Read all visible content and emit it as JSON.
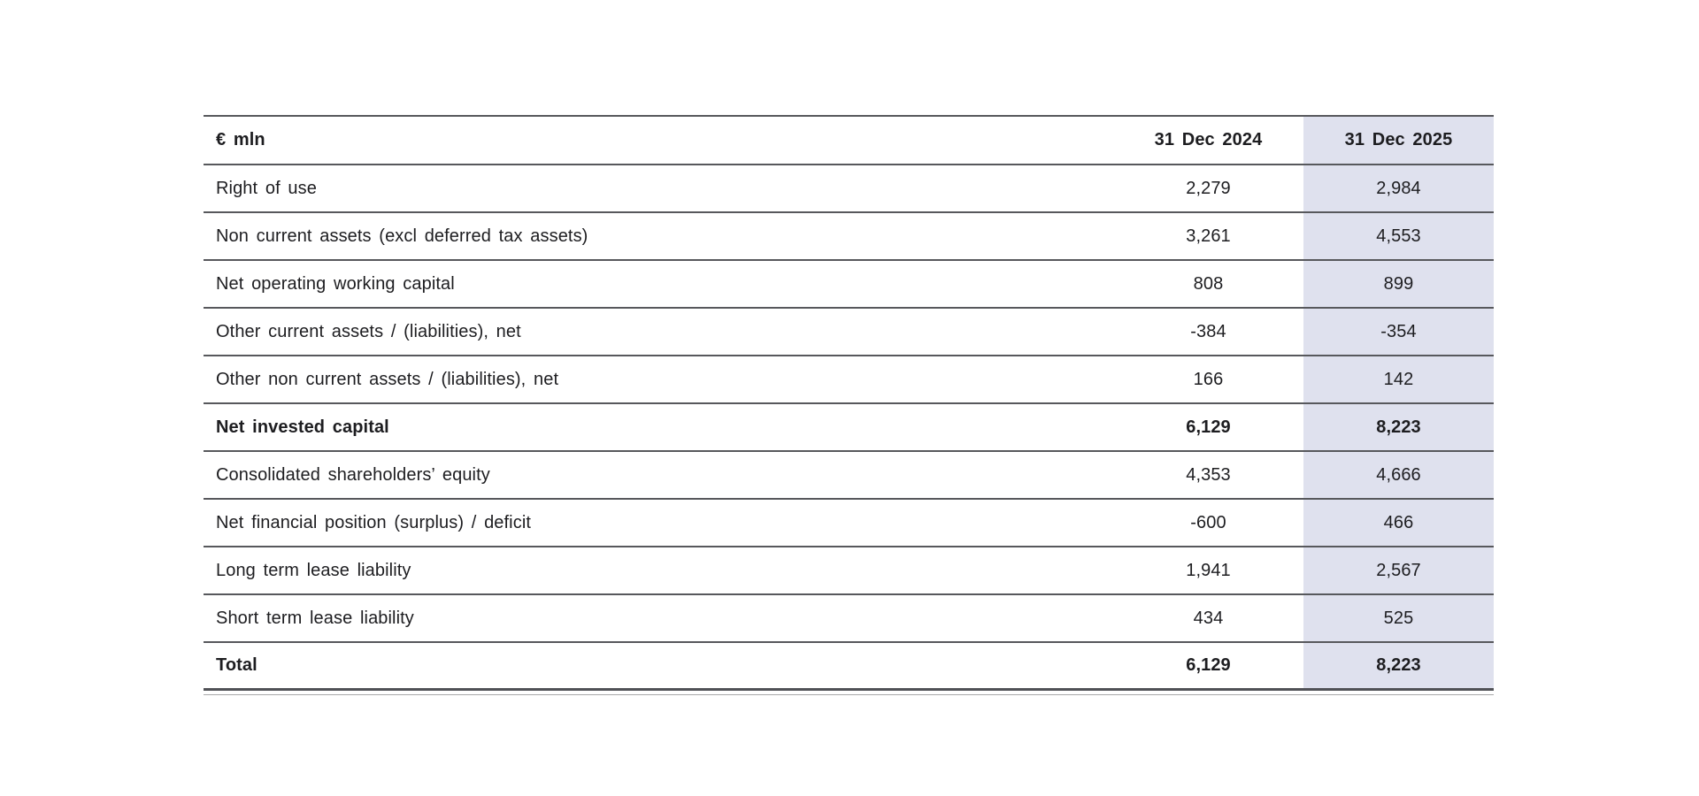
{
  "table": {
    "unit_header": "€ mln",
    "columns": {
      "c2024": "31 Dec 2024",
      "c2025": "31 Dec 2025"
    },
    "highlight_color": "#dfe1ee",
    "rule_color": "#57585c",
    "rows": [
      {
        "label": "Right of use",
        "v2024": "2,279",
        "v2025": "2,984",
        "bold": false
      },
      {
        "label": "Non current assets (excl deferred tax assets)",
        "v2024": "3,261",
        "v2025": "4,553",
        "bold": false
      },
      {
        "label": "Net operating working capital",
        "v2024": "808",
        "v2025": "899",
        "bold": false
      },
      {
        "label": "Other current assets / (liabilities), net",
        "v2024": "-384",
        "v2025": "-354",
        "bold": false
      },
      {
        "label": "Other non current assets / (liabilities), net",
        "v2024": "166",
        "v2025": "142",
        "bold": false
      },
      {
        "label": "Net invested capital",
        "v2024": "6,129",
        "v2025": "8,223",
        "bold": true
      },
      {
        "label": "Consolidated shareholders’ equity",
        "v2024": "4,353",
        "v2025": "4,666",
        "bold": false
      },
      {
        "label": "Net financial position (surplus) / deficit",
        "v2024": "-600",
        "v2025": "466",
        "bold": false
      },
      {
        "label": "Long term lease liability",
        "v2024": "1,941",
        "v2025": "2,567",
        "bold": false
      },
      {
        "label": "Short term lease liability",
        "v2024": "434",
        "v2025": "525",
        "bold": false
      },
      {
        "label": "Total",
        "v2024": "6,129",
        "v2025": "8,223",
        "bold": true
      }
    ]
  }
}
